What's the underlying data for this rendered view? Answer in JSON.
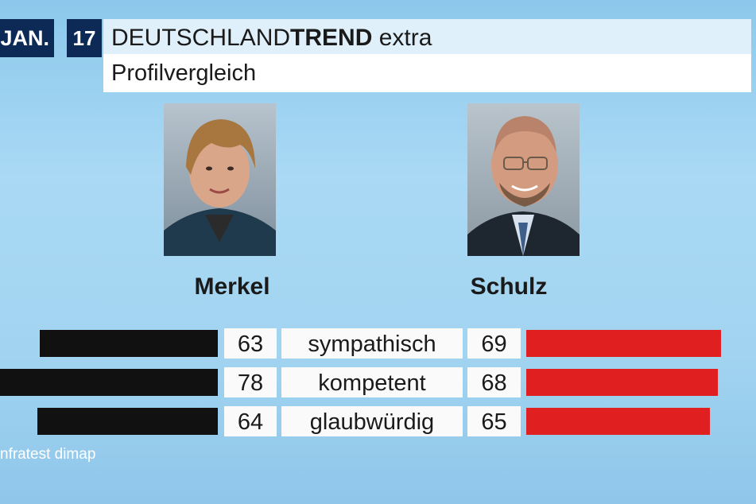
{
  "header": {
    "date": "JAN.",
    "number": "17",
    "title_regular": "DEUTSCHLAND",
    "title_bold": "TREND",
    "title_suffix": " extra",
    "subtitle": "Profilvergleich"
  },
  "candidates": [
    {
      "name": "Merkel",
      "photo": "merkel-portrait",
      "bar_color": "#111111"
    },
    {
      "name": "Schulz",
      "photo": "schulz-portrait",
      "bar_color": "#e02020"
    }
  ],
  "chart_data": {
    "type": "bar",
    "categories": [
      "sympathisch",
      "kompetent",
      "glaubwürdig"
    ],
    "series": [
      {
        "name": "Merkel",
        "values": [
          63,
          78,
          64
        ]
      },
      {
        "name": "Schulz",
        "values": [
          69,
          68,
          65
        ]
      }
    ],
    "title": "Profilvergleich",
    "xlabel": "",
    "ylabel": ""
  },
  "source": "nfratest dimap"
}
